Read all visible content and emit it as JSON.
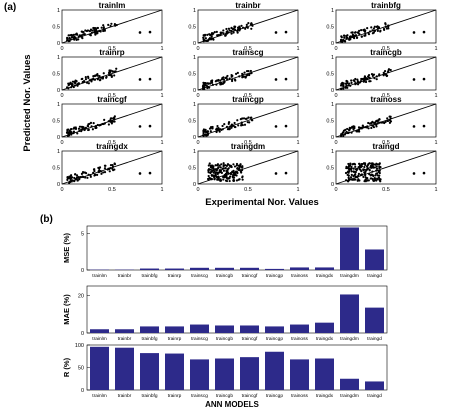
{
  "panel_labels": {
    "a": "(a)",
    "b": "(b)"
  },
  "colors": {
    "bar": "#2d2a8a",
    "ink": "#000000",
    "points": "#000000"
  },
  "chart_data": [
    {
      "type": "scatter",
      "panel": "(a)",
      "xlabel": "Experimental Nor. Values",
      "ylabel": "Predicted Nor. Values",
      "xlim": [
        0,
        1
      ],
      "ylim": [
        0,
        1
      ],
      "x_ticks": [
        "0",
        "0.5",
        "1"
      ],
      "y_ticks": [
        "0",
        "0.5",
        "1"
      ],
      "reference_line": "y = x",
      "subplots": [
        {
          "title": "trainlm",
          "spread": "tight"
        },
        {
          "title": "trainbr",
          "spread": "tight"
        },
        {
          "title": "trainbfg",
          "spread": "tight"
        },
        {
          "title": "trainrp",
          "spread": "tight"
        },
        {
          "title": "trainscg",
          "spread": "tight"
        },
        {
          "title": "traincgb",
          "spread": "tight"
        },
        {
          "title": "traincgf",
          "spread": "tight"
        },
        {
          "title": "traincgp",
          "spread": "tight"
        },
        {
          "title": "trainoss",
          "spread": "tight"
        },
        {
          "title": "traingdx",
          "spread": "tight"
        },
        {
          "title": "traingdm",
          "spread": "wide"
        },
        {
          "title": "traingd",
          "spread": "wide"
        }
      ]
    },
    {
      "type": "bar",
      "panel": "(b)",
      "categories": [
        "trainlm",
        "trainbr",
        "trainbfg",
        "trainrp",
        "trainscg",
        "traincgb",
        "traincgf",
        "traincgp",
        "trainoss",
        "traingdx",
        "traingdm",
        "traingd"
      ],
      "xlabel": "ANN MODELS",
      "charts": [
        {
          "ylabel": "MSE (%)",
          "ylim": [
            0,
            6
          ],
          "y_ticks": [
            0,
            5
          ],
          "values": [
            0.05,
            0.05,
            0.2,
            0.2,
            0.3,
            0.3,
            0.3,
            0.15,
            0.35,
            0.35,
            5.8,
            2.8
          ]
        },
        {
          "ylabel": "MAE (%)",
          "ylim": [
            0,
            25
          ],
          "y_ticks": [
            0,
            20
          ],
          "values": [
            2,
            2,
            3.5,
            3.5,
            4.5,
            4,
            4,
            3.5,
            4.5,
            5.5,
            20.5,
            13.5
          ]
        },
        {
          "ylabel": "R (%)",
          "ylim": [
            0,
            100
          ],
          "y_ticks": [
            0,
            50,
            100
          ],
          "values": [
            96,
            94,
            82,
            81,
            68,
            70,
            73,
            85,
            68,
            70,
            25,
            19
          ]
        }
      ]
    }
  ]
}
